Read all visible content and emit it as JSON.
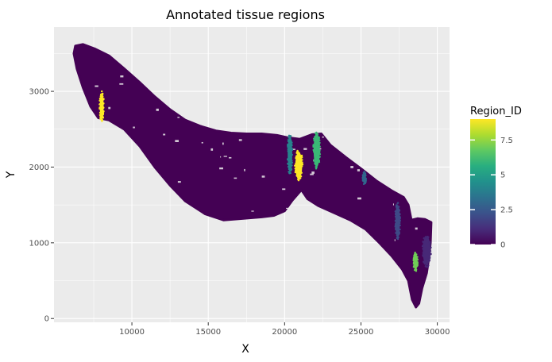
{
  "chart_data": {
    "type": "scatter",
    "title": "Annotated tissue regions",
    "xlabel": "X",
    "ylabel": "Y",
    "xlim": [
      4900,
      30800
    ],
    "ylim": [
      -50,
      3850
    ],
    "x_ticks": [
      10000,
      15000,
      20000,
      25000,
      30000
    ],
    "y_ticks": [
      0,
      1000,
      2000,
      3000
    ],
    "x_tick_labels": [
      "10000",
      "15000",
      "20000",
      "25000",
      "30000"
    ],
    "y_tick_labels": [
      "0",
      "1000",
      "2000",
      "3000"
    ],
    "grid": true,
    "background_color": "#ebebeb",
    "legend": {
      "title": "Region_ID",
      "placement": "right",
      "type": "colorbar",
      "range": [
        0,
        9
      ],
      "ticks": [
        0,
        2.5,
        5,
        7.5
      ],
      "tick_labels": [
        "0",
        "2.5",
        "5",
        "7.5"
      ],
      "colormap": [
        "#440154",
        "#472d7b",
        "#3b528b",
        "#2c728e",
        "#21918c",
        "#28ae80",
        "#5ec962",
        "#addc30",
        "#fde725"
      ]
    },
    "tissue_outline": [
      [
        6300,
        3600
      ],
      [
        6800,
        3620
      ],
      [
        7600,
        3560
      ],
      [
        8500,
        3470
      ],
      [
        9500,
        3300
      ],
      [
        10500,
        3120
      ],
      [
        11500,
        2930
      ],
      [
        12500,
        2760
      ],
      [
        13500,
        2620
      ],
      [
        14500,
        2540
      ],
      [
        15500,
        2480
      ],
      [
        16500,
        2450
      ],
      [
        17500,
        2440
      ],
      [
        18500,
        2440
      ],
      [
        19500,
        2420
      ],
      [
        20200,
        2390
      ],
      [
        21000,
        2370
      ],
      [
        21800,
        2430
      ],
      [
        22400,
        2440
      ],
      [
        23000,
        2290
      ],
      [
        24000,
        2130
      ],
      [
        25000,
        1980
      ],
      [
        26000,
        1820
      ],
      [
        27000,
        1690
      ],
      [
        27800,
        1600
      ],
      [
        28100,
        1500
      ],
      [
        28300,
        1300
      ],
      [
        28700,
        1320
      ],
      [
        29200,
        1310
      ],
      [
        29600,
        1270
      ],
      [
        29550,
        1000
      ],
      [
        29450,
        800
      ],
      [
        29300,
        600
      ],
      [
        29000,
        400
      ],
      [
        28800,
        200
      ],
      [
        28600,
        150
      ],
      [
        28350,
        250
      ],
      [
        28100,
        500
      ],
      [
        27700,
        650
      ],
      [
        27000,
        830
      ],
      [
        26200,
        1000
      ],
      [
        25300,
        1180
      ],
      [
        24300,
        1300
      ],
      [
        23200,
        1400
      ],
      [
        22200,
        1490
      ],
      [
        21500,
        1580
      ],
      [
        21100,
        1700
      ],
      [
        20500,
        1560
      ],
      [
        20000,
        1420
      ],
      [
        19300,
        1360
      ],
      [
        18500,
        1340
      ],
      [
        17300,
        1320
      ],
      [
        16000,
        1300
      ],
      [
        14800,
        1380
      ],
      [
        13500,
        1550
      ],
      [
        12500,
        1760
      ],
      [
        11500,
        2000
      ],
      [
        10500,
        2280
      ],
      [
        9500,
        2500
      ],
      [
        8500,
        2620
      ],
      [
        7800,
        2650
      ],
      [
        7300,
        2800
      ],
      [
        6800,
        3050
      ],
      [
        6400,
        3300
      ],
      [
        6200,
        3500
      ]
    ],
    "regions": [
      {
        "region_id": 9,
        "x": [
          7900,
          8150
        ],
        "y": [
          2620,
          2980
        ]
      },
      {
        "region_id": 4,
        "x": [
          20200,
          20500
        ],
        "y": [
          1940,
          2400
        ]
      },
      {
        "region_id": 9,
        "x": [
          20700,
          21150
        ],
        "y": [
          1840,
          2200
        ]
      },
      {
        "region_id": 6,
        "x": [
          21900,
          22300
        ],
        "y": [
          2000,
          2450
        ]
      },
      {
        "region_id": 3,
        "x": [
          25150,
          25300
        ],
        "y": [
          1780,
          1930
        ]
      },
      {
        "region_id": 2,
        "x": [
          27250,
          27550
        ],
        "y": [
          1070,
          1500
        ]
      },
      {
        "region_id": 7,
        "x": [
          28450,
          28700
        ],
        "y": [
          640,
          860
        ]
      },
      {
        "region_id": 1,
        "x": [
          29050,
          29550
        ],
        "y": [
          700,
          1090
        ]
      }
    ]
  }
}
